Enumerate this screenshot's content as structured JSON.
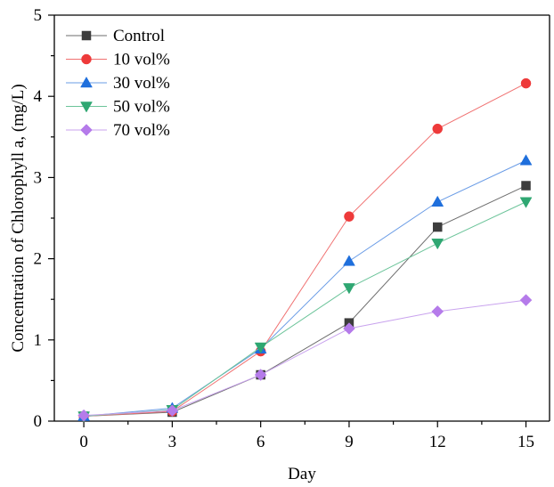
{
  "chart_data": {
    "type": "line",
    "xlabel": "Day",
    "ylabel": "Concentration of Chlorophyll a, (mg/L)",
    "x": [
      0,
      3,
      6,
      9,
      12,
      15
    ],
    "xlim": [
      -1,
      15.8
    ],
    "ylim": [
      0,
      5
    ],
    "xticks": [
      0,
      3,
      6,
      9,
      12,
      15
    ],
    "yticks": [
      0,
      1,
      2,
      3,
      4,
      5
    ],
    "legend_position": "top-left",
    "grid": false,
    "series": [
      {
        "name": "Control",
        "marker": "square",
        "line_color": "#6e6e6e",
        "marker_color": "#3d3d3d",
        "values": [
          0.06,
          0.11,
          0.57,
          1.21,
          2.39,
          2.9
        ]
      },
      {
        "name": "10 vol%",
        "marker": "circle",
        "line_color": "#f07070",
        "marker_color": "#ee3a3a",
        "values": [
          0.06,
          0.12,
          0.86,
          2.52,
          3.6,
          4.16
        ]
      },
      {
        "name": "30 vol%",
        "marker": "triangle-up",
        "line_color": "#6a9ce6",
        "marker_color": "#1f6fdc",
        "values": [
          0.06,
          0.16,
          0.89,
          1.97,
          2.7,
          3.21
        ]
      },
      {
        "name": "50 vol%",
        "marker": "triangle-down",
        "line_color": "#6cc49a",
        "marker_color": "#2fa772",
        "values": [
          0.06,
          0.14,
          0.91,
          1.64,
          2.19,
          2.7
        ]
      },
      {
        "name": "70 vol%",
        "marker": "diamond",
        "line_color": "#c9a3ee",
        "marker_color": "#b57bea",
        "values": [
          0.07,
          0.13,
          0.57,
          1.14,
          1.35,
          1.49
        ]
      }
    ]
  }
}
